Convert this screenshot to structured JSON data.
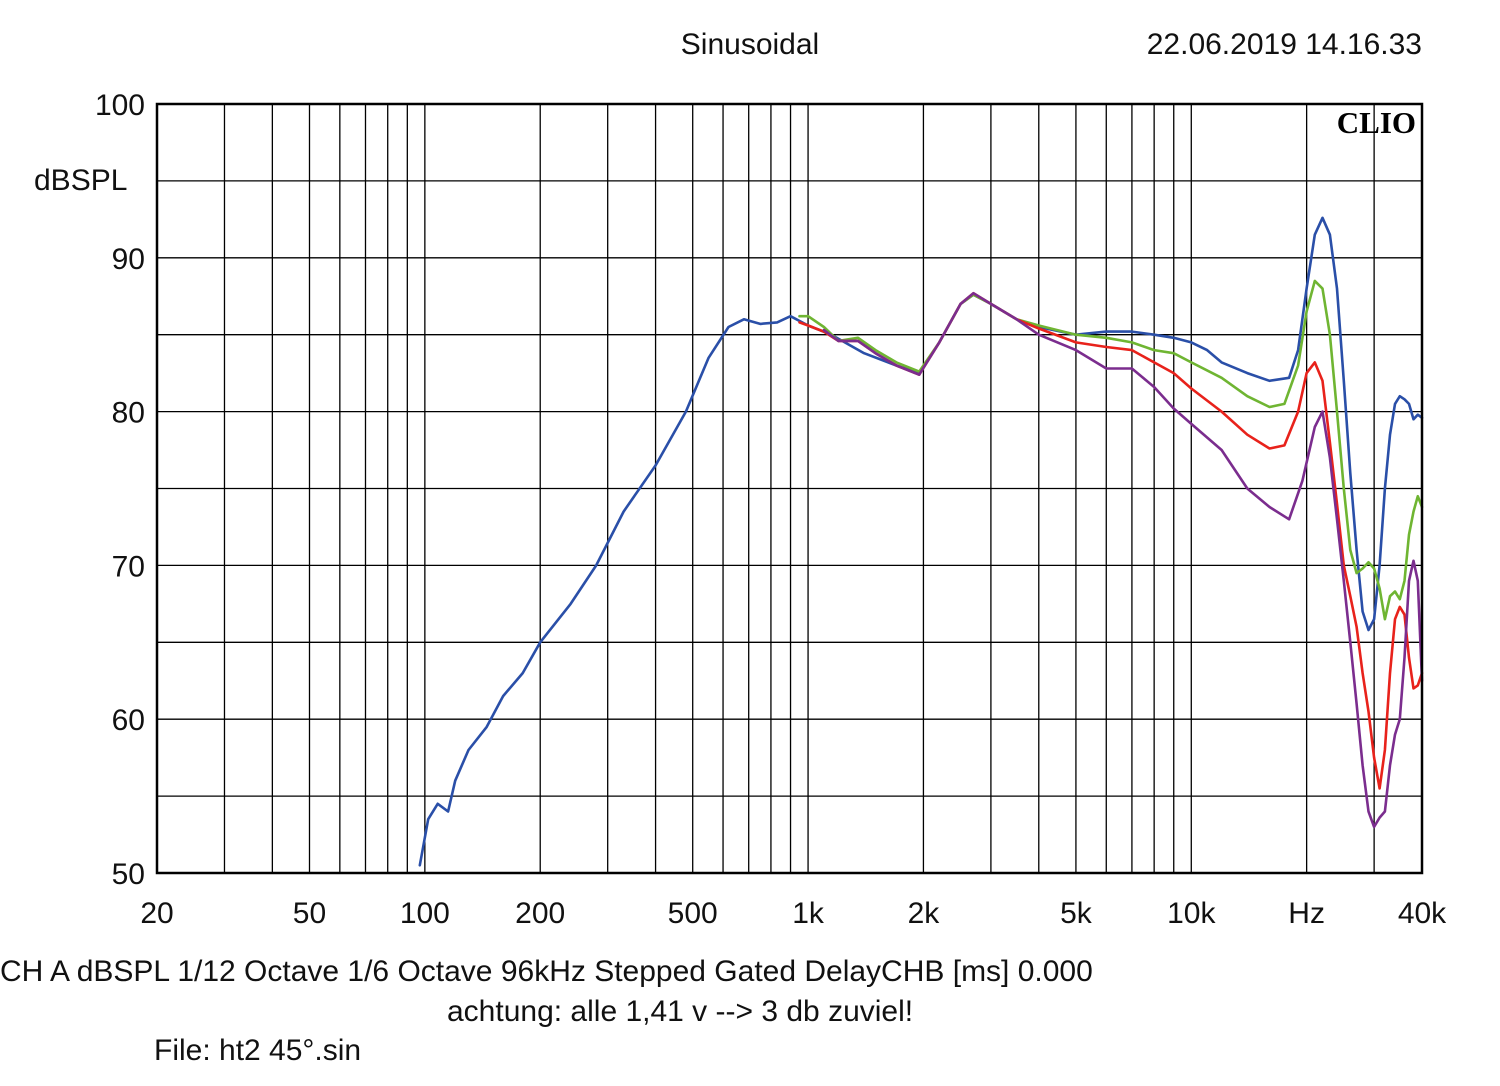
{
  "header": {
    "title": "Sinusoidal",
    "datetime": "22.06.2019 14.16.33",
    "brand": "CLIO"
  },
  "footer": {
    "info": "CH A   dBSPL   1/12 Octave   1/6 Octave   96kHz   Stepped    Gated    DelayCHB [ms] 0.000",
    "note": "achtung: alle 1,41 v --> 3 db zuviel!",
    "file": "File: ht2 45°.sin"
  },
  "chart_data": {
    "type": "line",
    "title": "Sinusoidal",
    "ylabel": "dBSPL",
    "x_scale": "log",
    "xlim": [
      20,
      40000
    ],
    "ylim": [
      50,
      100
    ],
    "grid": true,
    "x_tick_labels": [
      {
        "v": 20,
        "label": "20"
      },
      {
        "v": 50,
        "label": "50"
      },
      {
        "v": 100,
        "label": "100"
      },
      {
        "v": 200,
        "label": "200"
      },
      {
        "v": 500,
        "label": "500"
      },
      {
        "v": 1000,
        "label": "1k"
      },
      {
        "v": 2000,
        "label": "2k"
      },
      {
        "v": 5000,
        "label": "5k"
      },
      {
        "v": 10000,
        "label": "10k"
      },
      {
        "v": 20000,
        "label": "Hz"
      },
      {
        "v": 40000,
        "label": "40k"
      }
    ],
    "y_tick_labels": [
      {
        "v": 100,
        "label": "100"
      },
      {
        "v": 90,
        "label": "90"
      },
      {
        "v": 80,
        "label": "80"
      },
      {
        "v": 70,
        "label": "70"
      },
      {
        "v": 60,
        "label": "60"
      },
      {
        "v": 50,
        "label": "50"
      }
    ],
    "colors": {
      "axis": "#000000",
      "grid": "#000000"
    },
    "series": [
      {
        "color": "#2a4fa8",
        "points": [
          [
            97,
            50.5
          ],
          [
            102,
            53.5
          ],
          [
            108,
            54.5
          ],
          [
            115,
            54
          ],
          [
            120,
            56
          ],
          [
            130,
            58
          ],
          [
            145,
            59.5
          ],
          [
            160,
            61.5
          ],
          [
            180,
            63
          ],
          [
            200,
            65
          ],
          [
            240,
            67.5
          ],
          [
            280,
            70
          ],
          [
            330,
            73.5
          ],
          [
            400,
            76.5
          ],
          [
            480,
            80
          ],
          [
            550,
            83.5
          ],
          [
            620,
            85.5
          ],
          [
            680,
            86
          ],
          [
            750,
            85.7
          ],
          [
            830,
            85.8
          ],
          [
            900,
            86.2
          ],
          [
            1000,
            85.6
          ],
          [
            1150,
            85
          ],
          [
            1400,
            83.8
          ],
          [
            1700,
            83
          ],
          [
            1950,
            82.5
          ],
          [
            2200,
            84.5
          ],
          [
            2500,
            87
          ],
          [
            2700,
            87.6
          ],
          [
            3000,
            87
          ],
          [
            3500,
            86
          ],
          [
            4000,
            85.5
          ],
          [
            5000,
            85
          ],
          [
            6000,
            85.2
          ],
          [
            7000,
            85.2
          ],
          [
            8000,
            85
          ],
          [
            9000,
            84.8
          ],
          [
            10000,
            84.5
          ],
          [
            11000,
            84
          ],
          [
            12000,
            83.2
          ],
          [
            14000,
            82.5
          ],
          [
            16000,
            82
          ],
          [
            18000,
            82.2
          ],
          [
            19000,
            84
          ],
          [
            20000,
            88
          ],
          [
            21000,
            91.5
          ],
          [
            22000,
            92.6
          ],
          [
            23000,
            91.5
          ],
          [
            24000,
            88
          ],
          [
            25000,
            82
          ],
          [
            26000,
            76
          ],
          [
            27000,
            71
          ],
          [
            28000,
            67
          ],
          [
            29000,
            65.8
          ],
          [
            30000,
            66.5
          ],
          [
            31000,
            70
          ],
          [
            32000,
            75
          ],
          [
            33000,
            78.5
          ],
          [
            34000,
            80.5
          ],
          [
            35000,
            81
          ],
          [
            36000,
            80.8
          ],
          [
            37000,
            80.5
          ],
          [
            38000,
            79.5
          ],
          [
            39000,
            79.8
          ],
          [
            40000,
            79.6
          ]
        ]
      },
      {
        "color": "#6fb532",
        "points": [
          [
            950,
            86.2
          ],
          [
            1000,
            86.2
          ],
          [
            1100,
            85.5
          ],
          [
            1200,
            84.6
          ],
          [
            1350,
            84.8
          ],
          [
            1500,
            84
          ],
          [
            1700,
            83.2
          ],
          [
            1950,
            82.6
          ],
          [
            2200,
            84.5
          ],
          [
            2500,
            87
          ],
          [
            2700,
            87.6
          ],
          [
            3000,
            87
          ],
          [
            3500,
            86
          ],
          [
            4000,
            85.6
          ],
          [
            5000,
            85
          ],
          [
            6000,
            84.8
          ],
          [
            7000,
            84.5
          ],
          [
            8000,
            84
          ],
          [
            9000,
            83.8
          ],
          [
            10000,
            83.2
          ],
          [
            12000,
            82.2
          ],
          [
            14000,
            81
          ],
          [
            16000,
            80.3
          ],
          [
            17500,
            80.5
          ],
          [
            19000,
            83
          ],
          [
            20000,
            86.5
          ],
          [
            21000,
            88.5
          ],
          [
            22000,
            88
          ],
          [
            23000,
            85
          ],
          [
            24000,
            80
          ],
          [
            25000,
            75
          ],
          [
            26000,
            71
          ],
          [
            27000,
            69.5
          ],
          [
            28000,
            69.8
          ],
          [
            29000,
            70.2
          ],
          [
            30000,
            69.8
          ],
          [
            31000,
            68.5
          ],
          [
            32000,
            66.5
          ],
          [
            33000,
            68
          ],
          [
            34000,
            68.3
          ],
          [
            35000,
            67.8
          ],
          [
            36000,
            69
          ],
          [
            37000,
            72
          ],
          [
            38000,
            73.5
          ],
          [
            39000,
            74.5
          ],
          [
            40000,
            73.8
          ]
        ]
      },
      {
        "color": "#e8221b",
        "points": [
          [
            950,
            85.8
          ],
          [
            1000,
            85.6
          ],
          [
            1100,
            85.2
          ],
          [
            1200,
            84.6
          ],
          [
            1350,
            84.6
          ],
          [
            1500,
            83.8
          ],
          [
            1700,
            83
          ],
          [
            1950,
            82.4
          ],
          [
            2200,
            84.5
          ],
          [
            2500,
            87
          ],
          [
            2700,
            87.7
          ],
          [
            3000,
            87
          ],
          [
            3500,
            86
          ],
          [
            4000,
            85.4
          ],
          [
            5000,
            84.5
          ],
          [
            6000,
            84.2
          ],
          [
            7000,
            84
          ],
          [
            8000,
            83.2
          ],
          [
            9000,
            82.5
          ],
          [
            10000,
            81.5
          ],
          [
            12000,
            80
          ],
          [
            14000,
            78.5
          ],
          [
            16000,
            77.6
          ],
          [
            17500,
            77.8
          ],
          [
            19000,
            80
          ],
          [
            20000,
            82.5
          ],
          [
            21000,
            83.2
          ],
          [
            22000,
            82
          ],
          [
            23000,
            78
          ],
          [
            24000,
            74
          ],
          [
            25000,
            70
          ],
          [
            26000,
            68
          ],
          [
            27000,
            66
          ],
          [
            28000,
            63
          ],
          [
            29000,
            60.5
          ],
          [
            30000,
            57.5
          ],
          [
            31000,
            55.5
          ],
          [
            32000,
            58
          ],
          [
            33000,
            63
          ],
          [
            34000,
            66.5
          ],
          [
            35000,
            67.3
          ],
          [
            36000,
            66.8
          ],
          [
            37000,
            64
          ],
          [
            38000,
            62
          ],
          [
            39000,
            62.2
          ],
          [
            40000,
            63
          ]
        ]
      },
      {
        "color": "#7b2d8e",
        "points": [
          [
            1100,
            85.3
          ],
          [
            1200,
            84.6
          ],
          [
            1350,
            84.6
          ],
          [
            1500,
            83.8
          ],
          [
            1700,
            83
          ],
          [
            1950,
            82.4
          ],
          [
            2200,
            84.5
          ],
          [
            2500,
            87
          ],
          [
            2700,
            87.7
          ],
          [
            3000,
            87
          ],
          [
            3500,
            86
          ],
          [
            4000,
            85
          ],
          [
            5000,
            84
          ],
          [
            6000,
            82.8
          ],
          [
            7000,
            82.8
          ],
          [
            8000,
            81.6
          ],
          [
            9000,
            80.2
          ],
          [
            10000,
            79.2
          ],
          [
            12000,
            77.5
          ],
          [
            14000,
            75
          ],
          [
            16000,
            73.8
          ],
          [
            18000,
            73
          ],
          [
            19500,
            75.5
          ],
          [
            21000,
            79
          ],
          [
            22000,
            80
          ],
          [
            23000,
            77
          ],
          [
            24000,
            73
          ],
          [
            25000,
            69
          ],
          [
            26000,
            65
          ],
          [
            27000,
            61
          ],
          [
            28000,
            57
          ],
          [
            29000,
            54
          ],
          [
            30000,
            53
          ],
          [
            31000,
            53.6
          ],
          [
            32000,
            54
          ],
          [
            33000,
            57
          ],
          [
            34000,
            59
          ],
          [
            35000,
            60
          ],
          [
            36000,
            64
          ],
          [
            37000,
            69
          ],
          [
            38000,
            70.3
          ],
          [
            39000,
            69
          ],
          [
            40000,
            62.5
          ]
        ]
      }
    ]
  }
}
